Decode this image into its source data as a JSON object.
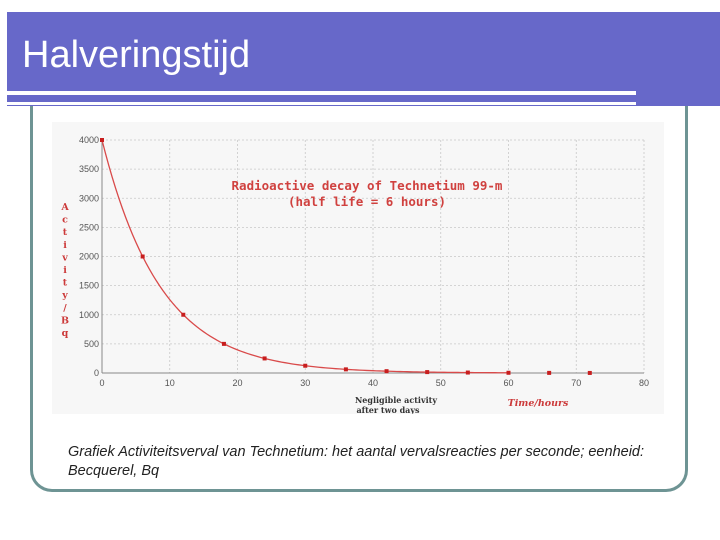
{
  "slide": {
    "title": "Halveringstijd",
    "caption": "Grafiek Activiteitsverval van Technetium: het aantal vervalsreacties per seconde; eenheid: Becquerel, Bq",
    "accent_color": "#6768c9",
    "frame_color": "#6e9494"
  },
  "chart_data": {
    "type": "line",
    "title_line1": "Radioactive decay of Technetium 99-m",
    "title_line2": "(half life = 6 hours)",
    "ylabel_chars": [
      "A",
      "c",
      "t",
      "i",
      "v",
      "i",
      "t",
      "y",
      "/",
      "B",
      "q"
    ],
    "xlabel": "Time/hours",
    "annotation_line1": "Negligible activity",
    "annotation_line2": "after two days",
    "xlim": [
      0,
      80
    ],
    "ylim": [
      0,
      4000
    ],
    "x_ticks": [
      "0",
      "10",
      "20",
      "30",
      "40",
      "50",
      "60",
      "70",
      "80"
    ],
    "y_ticks": [
      "0",
      "500",
      "1000",
      "1500",
      "2000",
      "2500",
      "3000",
      "3500",
      "4000"
    ],
    "grid": true,
    "points_x": [
      0,
      6,
      12,
      18,
      24,
      30,
      36,
      42,
      48,
      54,
      60,
      66,
      72
    ],
    "points_y": [
      4000,
      2000,
      1000,
      500,
      250,
      125,
      62.5,
      31.25,
      15.6,
      7.8,
      3.9,
      1.95,
      0.98
    ],
    "line_color": "#d94a4a",
    "point_color": "#c81e1e"
  }
}
